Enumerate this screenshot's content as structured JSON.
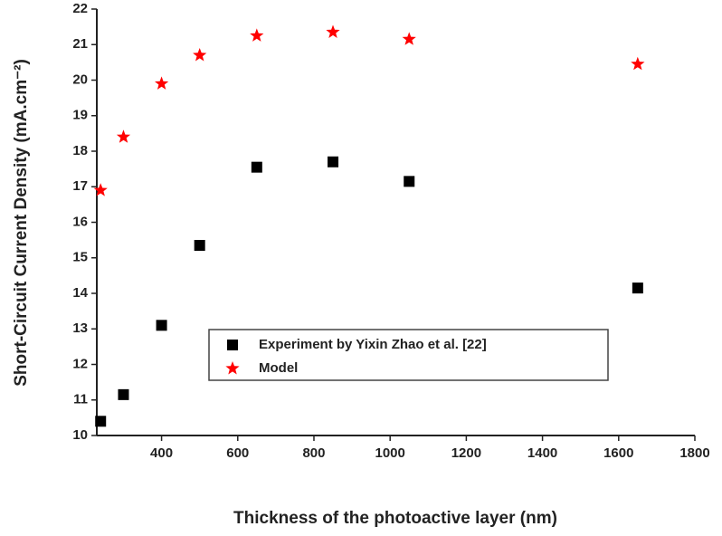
{
  "chart_data": {
    "type": "scatter",
    "xlabel": "Thickness of the photoactive layer (nm)",
    "ylabel": "Short-Circuit Current Density (mA.cm⁻²)",
    "x": [
      240,
      300,
      400,
      500,
      650,
      850,
      1050,
      1650
    ],
    "series": [
      {
        "name": "Experiment by Yixin Zhao et al. [22]",
        "color": "#000000",
        "marker": "square",
        "values": [
          10.4,
          11.15,
          13.1,
          15.35,
          17.55,
          17.7,
          17.15,
          14.15
        ]
      },
      {
        "name": "Model",
        "color": "#ff0000",
        "marker": "star",
        "values": [
          16.9,
          18.4,
          19.9,
          20.7,
          21.25,
          21.35,
          21.15,
          20.45
        ]
      }
    ],
    "xlim": [
      230,
      1800
    ],
    "xticks": [
      400,
      600,
      800,
      1000,
      1200,
      1400,
      1600,
      1800
    ],
    "ylim": [
      10,
      22
    ],
    "yticks": [
      10,
      11,
      12,
      13,
      14,
      15,
      16,
      17,
      18,
      19,
      20,
      21,
      22
    ]
  }
}
